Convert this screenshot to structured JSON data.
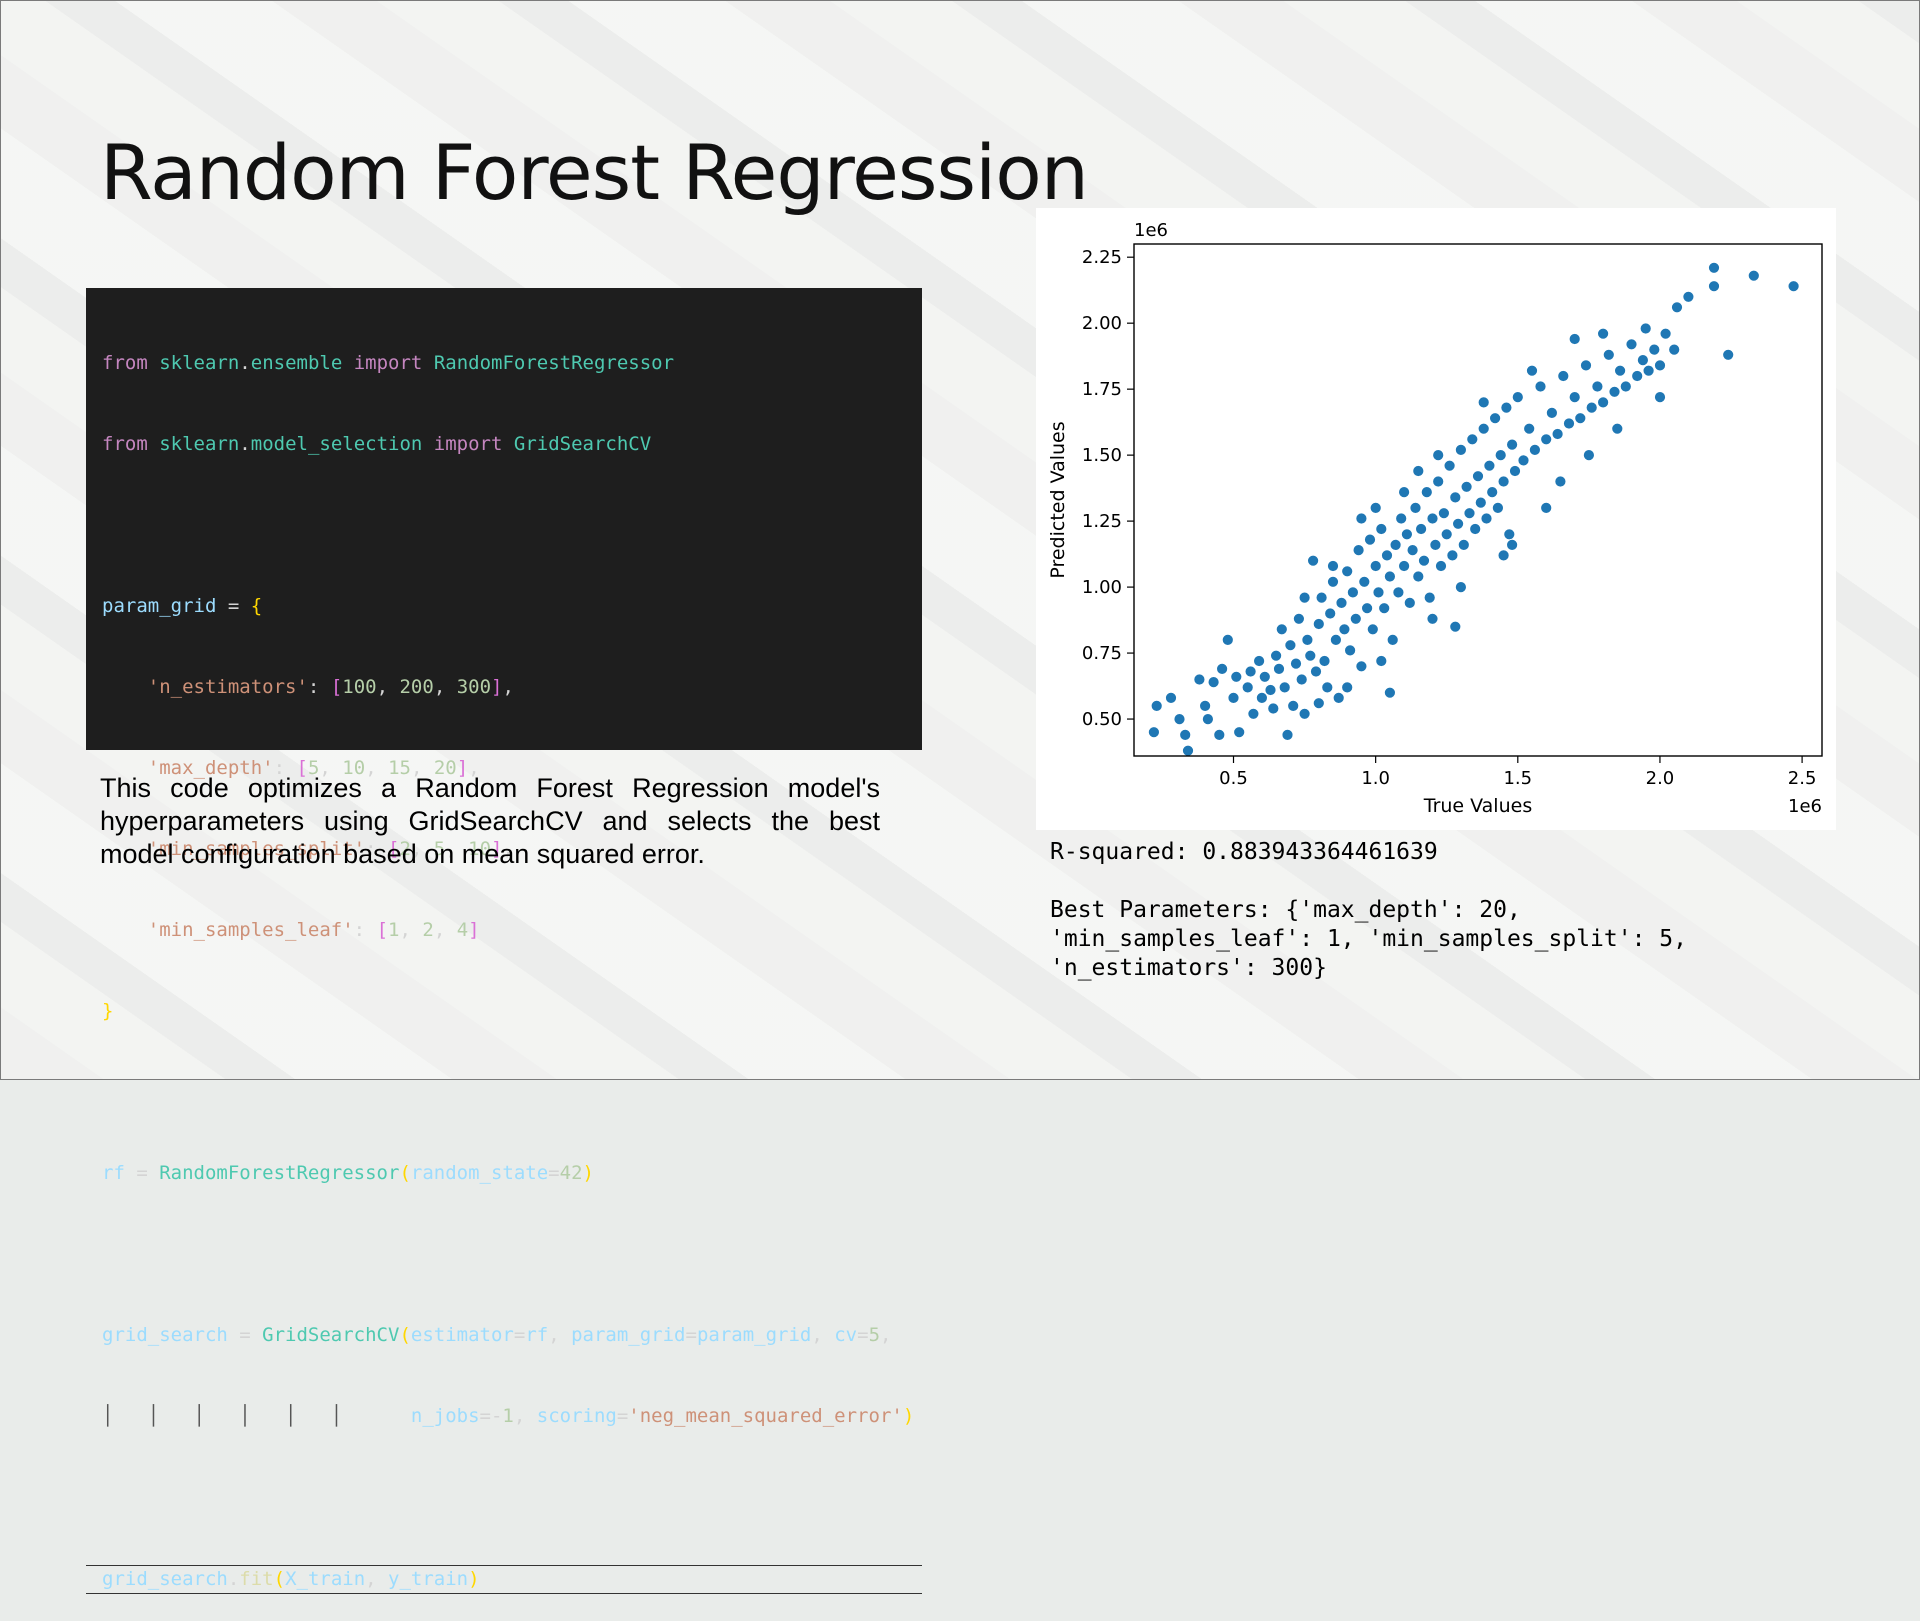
{
  "slide": {
    "title": "Random Forest Regression",
    "description": "This code optimizes a Random Forest Regression model's hyperparameters using GridSearchCV and selects the best model configuration based on mean squared error."
  },
  "code": {
    "language": "python",
    "lines": [
      "from sklearn.ensemble import RandomForestRegressor",
      "from sklearn.model_selection import GridSearchCV",
      "",
      "param_grid = {",
      "    'n_estimators': [100, 200, 300],",
      "    'max_depth': [5, 10, 15, 20],",
      "    'min_samples_split': [2, 5, 10],",
      "    'min_samples_leaf': [1, 2, 4]",
      "}",
      "",
      "rf = RandomForestRegressor(random_state=42)",
      "",
      "grid_search = GridSearchCV(estimator=rf, param_grid=param_grid, cv=5,",
      "                           n_jobs=-1, scoring='neg_mean_squared_error')",
      "",
      "grid_search.fit(X_train, y_train)"
    ]
  },
  "output": {
    "r_squared": "R-squared: 0.883943364461639",
    "best_params_lines": [
      "Best Parameters: {'max_depth': 20,",
      "'min_samples_leaf': 1, 'min_samples_split': 5,",
      "'n_estimators': 300}"
    ]
  },
  "colors": {
    "point": "#1f77b4",
    "point_edge": "#ffffff",
    "code_bg": "#1e1e1e"
  },
  "chart_data": {
    "type": "scatter",
    "xlabel": "True Values",
    "ylabel": "Predicted Values",
    "x_offset_label": "1e6",
    "y_offset_label": "1e6",
    "xlim": [
      0.15,
      2.57
    ],
    "ylim": [
      0.36,
      2.3
    ],
    "xticks": [
      0.5,
      1.0,
      1.5,
      2.0,
      2.5
    ],
    "xtick_labels": [
      "0.5",
      "1.0",
      "1.5",
      "2.0",
      "2.5"
    ],
    "yticks": [
      0.5,
      0.75,
      1.0,
      1.25,
      1.5,
      1.75,
      2.0,
      2.25
    ],
    "ytick_labels": [
      "0.50",
      "0.75",
      "1.00",
      "1.25",
      "1.50",
      "1.75",
      "2.00",
      "2.25"
    ],
    "grid": false,
    "points": [
      [
        0.22,
        0.45
      ],
      [
        0.23,
        0.55
      ],
      [
        0.28,
        0.58
      ],
      [
        0.31,
        0.5
      ],
      [
        0.33,
        0.44
      ],
      [
        0.34,
        0.38
      ],
      [
        0.38,
        0.65
      ],
      [
        0.4,
        0.55
      ],
      [
        0.41,
        0.5
      ],
      [
        0.43,
        0.64
      ],
      [
        0.45,
        0.44
      ],
      [
        0.46,
        0.69
      ],
      [
        0.48,
        0.8
      ],
      [
        0.5,
        0.58
      ],
      [
        0.51,
        0.66
      ],
      [
        0.52,
        0.45
      ],
      [
        0.55,
        0.62
      ],
      [
        0.56,
        0.68
      ],
      [
        0.57,
        0.52
      ],
      [
        0.59,
        0.72
      ],
      [
        0.6,
        0.58
      ],
      [
        0.61,
        0.66
      ],
      [
        0.63,
        0.61
      ],
      [
        0.64,
        0.54
      ],
      [
        0.65,
        0.74
      ],
      [
        0.66,
        0.69
      ],
      [
        0.67,
        0.84
      ],
      [
        0.68,
        0.62
      ],
      [
        0.69,
        0.44
      ],
      [
        0.7,
        0.78
      ],
      [
        0.71,
        0.55
      ],
      [
        0.72,
        0.71
      ],
      [
        0.73,
        0.88
      ],
      [
        0.74,
        0.65
      ],
      [
        0.75,
        0.52
      ],
      [
        0.76,
        0.8
      ],
      [
        0.77,
        0.74
      ],
      [
        0.78,
        1.1
      ],
      [
        0.79,
        0.68
      ],
      [
        0.8,
        0.86
      ],
      [
        0.81,
        0.96
      ],
      [
        0.82,
        0.72
      ],
      [
        0.83,
        0.62
      ],
      [
        0.84,
        0.9
      ],
      [
        0.85,
        1.02
      ],
      [
        0.86,
        0.8
      ],
      [
        0.87,
        0.58
      ],
      [
        0.88,
        0.94
      ],
      [
        0.89,
        0.84
      ],
      [
        0.9,
        1.06
      ],
      [
        0.91,
        0.76
      ],
      [
        0.92,
        0.98
      ],
      [
        0.93,
        0.88
      ],
      [
        0.94,
        1.14
      ],
      [
        0.95,
        0.7
      ],
      [
        0.96,
        1.02
      ],
      [
        0.97,
        0.92
      ],
      [
        0.98,
        1.18
      ],
      [
        0.99,
        0.84
      ],
      [
        1.0,
        1.08
      ],
      [
        1.01,
        0.98
      ],
      [
        1.02,
        1.22
      ],
      [
        1.03,
        0.92
      ],
      [
        1.04,
        1.12
      ],
      [
        1.05,
        1.04
      ],
      [
        1.06,
        0.8
      ],
      [
        1.07,
        1.16
      ],
      [
        1.08,
        0.98
      ],
      [
        1.09,
        1.26
      ],
      [
        1.1,
        1.08
      ],
      [
        1.11,
        1.2
      ],
      [
        1.12,
        0.94
      ],
      [
        1.13,
        1.14
      ],
      [
        1.14,
        1.3
      ],
      [
        1.15,
        1.04
      ],
      [
        1.16,
        1.22
      ],
      [
        1.17,
        1.1
      ],
      [
        1.18,
        1.36
      ],
      [
        1.19,
        0.96
      ],
      [
        1.2,
        1.26
      ],
      [
        1.21,
        1.16
      ],
      [
        1.22,
        1.4
      ],
      [
        1.23,
        1.08
      ],
      [
        1.24,
        1.28
      ],
      [
        1.25,
        1.2
      ],
      [
        1.26,
        1.46
      ],
      [
        1.27,
        1.12
      ],
      [
        1.28,
        1.34
      ],
      [
        1.29,
        1.24
      ],
      [
        1.3,
        1.52
      ],
      [
        1.31,
        1.16
      ],
      [
        1.32,
        1.38
      ],
      [
        1.33,
        1.28
      ],
      [
        1.34,
        1.56
      ],
      [
        1.35,
        1.22
      ],
      [
        1.36,
        1.42
      ],
      [
        1.37,
        1.32
      ],
      [
        1.38,
        1.6
      ],
      [
        1.39,
        1.26
      ],
      [
        1.4,
        1.46
      ],
      [
        1.41,
        1.36
      ],
      [
        1.42,
        1.64
      ],
      [
        1.43,
        1.3
      ],
      [
        1.44,
        1.5
      ],
      [
        1.45,
        1.4
      ],
      [
        1.46,
        1.68
      ],
      [
        1.47,
        1.2
      ],
      [
        1.48,
        1.54
      ],
      [
        1.49,
        1.44
      ],
      [
        1.5,
        1.72
      ],
      [
        1.52,
        1.48
      ],
      [
        1.54,
        1.6
      ],
      [
        1.56,
        1.52
      ],
      [
        1.58,
        1.76
      ],
      [
        1.6,
        1.56
      ],
      [
        1.62,
        1.66
      ],
      [
        1.64,
        1.58
      ],
      [
        1.66,
        1.8
      ],
      [
        1.68,
        1.62
      ],
      [
        1.7,
        1.72
      ],
      [
        1.72,
        1.64
      ],
      [
        1.74,
        1.84
      ],
      [
        1.76,
        1.68
      ],
      [
        1.78,
        1.76
      ],
      [
        1.8,
        1.7
      ],
      [
        1.82,
        1.88
      ],
      [
        1.84,
        1.74
      ],
      [
        1.86,
        1.82
      ],
      [
        1.88,
        1.76
      ],
      [
        1.9,
        1.92
      ],
      [
        1.92,
        1.8
      ],
      [
        1.94,
        1.86
      ],
      [
        1.96,
        1.82
      ],
      [
        1.98,
        1.9
      ],
      [
        2.0,
        1.84
      ],
      [
        2.02,
        1.96
      ],
      [
        2.05,
        1.9
      ],
      [
        2.06,
        2.06
      ],
      [
        2.1,
        2.1
      ],
      [
        2.19,
        2.14
      ],
      [
        2.19,
        2.21
      ],
      [
        2.24,
        1.88
      ],
      [
        2.33,
        2.18
      ],
      [
        2.47,
        2.14
      ],
      [
        1.05,
        0.6
      ],
      [
        1.2,
        0.88
      ],
      [
        1.28,
        0.85
      ],
      [
        1.45,
        1.12
      ],
      [
        1.6,
        1.3
      ],
      [
        1.75,
        1.5
      ],
      [
        0.95,
        1.26
      ],
      [
        1.1,
        1.36
      ],
      [
        1.22,
        1.5
      ],
      [
        1.38,
        1.7
      ],
      [
        1.55,
        1.82
      ],
      [
        1.7,
        1.94
      ],
      [
        0.85,
        1.08
      ],
      [
        0.75,
        0.96
      ],
      [
        1.0,
        1.3
      ],
      [
        1.15,
        1.44
      ],
      [
        0.9,
        0.62
      ],
      [
        0.8,
        0.56
      ],
      [
        1.02,
        0.72
      ],
      [
        1.3,
        1.0
      ],
      [
        1.48,
        1.16
      ],
      [
        1.65,
        1.4
      ],
      [
        1.85,
        1.6
      ],
      [
        2.0,
        1.72
      ],
      [
        1.95,
        1.98
      ],
      [
        1.8,
        1.96
      ]
    ]
  }
}
